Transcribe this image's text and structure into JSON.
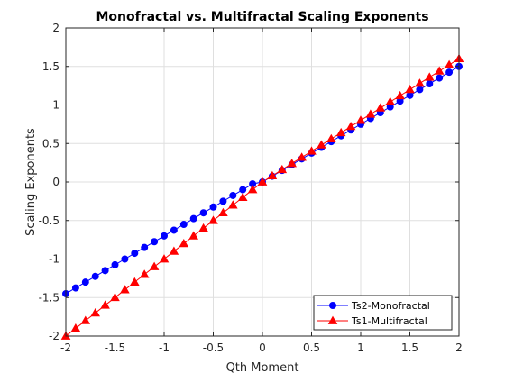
{
  "chart_data": {
    "type": "line",
    "title": "Monofractal vs. Multifractal Scaling Exponents",
    "xlabel": "Qth Moment",
    "ylabel": "Scaling Exponents",
    "xlim": [
      -2,
      2
    ],
    "ylim": [
      -2,
      2
    ],
    "xticks": [
      -2,
      -1.5,
      -1,
      -0.5,
      0,
      0.5,
      1,
      1.5,
      2
    ],
    "xtick_labels": [
      "-2",
      "-1.5",
      "-1",
      "-0.5",
      "0",
      "0.5",
      "1",
      "1.5",
      "2"
    ],
    "yticks": [
      -2,
      -1.5,
      -1,
      -0.5,
      0,
      0.5,
      1,
      1.5,
      2
    ],
    "ytick_labels": [
      "-2",
      "-1.5",
      "-1",
      "-0.5",
      "0",
      "0.5",
      "1",
      "1.5",
      "2"
    ],
    "grid": true,
    "legend_position": "bottom-right",
    "x": [
      -2.0,
      -1.9,
      -1.8,
      -1.7,
      -1.6,
      -1.5,
      -1.4,
      -1.3,
      -1.2,
      -1.1,
      -1.0,
      -0.9,
      -0.8,
      -0.7,
      -0.6,
      -0.5,
      -0.4,
      -0.3,
      -0.2,
      -0.1,
      0.0,
      0.1,
      0.2,
      0.3,
      0.4,
      0.5,
      0.6,
      0.7,
      0.8,
      0.9,
      1.0,
      1.1,
      1.2,
      1.3,
      1.4,
      1.5,
      1.6,
      1.7,
      1.8,
      1.9,
      2.0
    ],
    "series": [
      {
        "name": "Ts2-Monofractal",
        "color": "#0000ff",
        "marker": "circle",
        "values": [
          -1.45,
          -1.375,
          -1.3,
          -1.225,
          -1.15,
          -1.075,
          -1.0,
          -0.925,
          -0.85,
          -0.775,
          -0.7,
          -0.625,
          -0.55,
          -0.475,
          -0.4,
          -0.325,
          -0.25,
          -0.175,
          -0.1,
          -0.025,
          0.0,
          0.075,
          0.15,
          0.225,
          0.3,
          0.375,
          0.45,
          0.525,
          0.6,
          0.675,
          0.75,
          0.825,
          0.9,
          0.975,
          1.05,
          1.125,
          1.2,
          1.275,
          1.35,
          1.425,
          1.5
        ]
      },
      {
        "name": "Ts1-Multifractal",
        "color": "#ff0000",
        "marker": "triangle",
        "values": [
          -2.0,
          -1.9,
          -1.8,
          -1.7,
          -1.6,
          -1.5,
          -1.4,
          -1.3,
          -1.2,
          -1.1,
          -1.0,
          -0.9,
          -0.8,
          -0.7,
          -0.6,
          -0.5,
          -0.4,
          -0.3,
          -0.2,
          -0.1,
          0.0,
          0.08,
          0.16,
          0.24,
          0.32,
          0.4,
          0.48,
          0.56,
          0.64,
          0.72,
          0.8,
          0.88,
          0.96,
          1.04,
          1.12,
          1.2,
          1.28,
          1.36,
          1.44,
          1.52,
          1.6
        ]
      }
    ]
  }
}
